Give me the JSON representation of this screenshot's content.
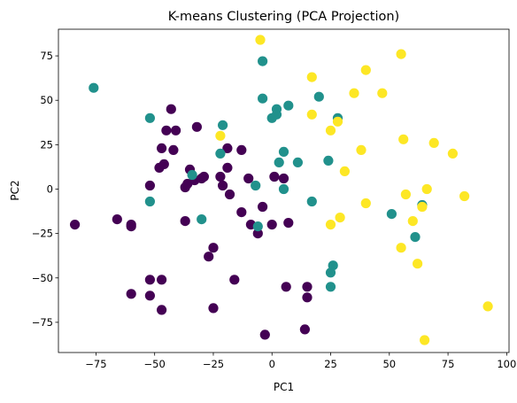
{
  "chart_data": {
    "type": "scatter",
    "title": "K-means Clustering (PCA Projection)",
    "xlabel": "PC1",
    "ylabel": "PC2",
    "xlim": [
      -91,
      101
    ],
    "ylim": [
      -92,
      90
    ],
    "xticks": [
      -75,
      -50,
      -25,
      0,
      25,
      50,
      75,
      100
    ],
    "yticks": [
      -75,
      -50,
      -25,
      0,
      25,
      50,
      75
    ],
    "grid": false,
    "series": [
      {
        "color": "#440154",
        "points": [
          [
            -84,
            -20
          ],
          [
            -66,
            -17
          ],
          [
            -60,
            -20
          ],
          [
            -60,
            -21
          ],
          [
            -60,
            -59
          ],
          [
            -52,
            2
          ],
          [
            -52,
            -51
          ],
          [
            -52,
            -60
          ],
          [
            -47,
            -51
          ],
          [
            -47,
            -68
          ],
          [
            -48,
            12
          ],
          [
            -47,
            23
          ],
          [
            -46,
            14
          ],
          [
            -45,
            33
          ],
          [
            -43,
            45
          ],
          [
            -42,
            22
          ],
          [
            -41,
            33
          ],
          [
            -37,
            -18
          ],
          [
            -37,
            1
          ],
          [
            -36,
            3
          ],
          [
            -35,
            11
          ],
          [
            -33,
            5
          ],
          [
            -32,
            35
          ],
          [
            -30,
            6
          ],
          [
            -29,
            7
          ],
          [
            -27,
            -38
          ],
          [
            -25,
            -33
          ],
          [
            -25,
            -67
          ],
          [
            -22,
            7
          ],
          [
            -21,
            2
          ],
          [
            -19,
            12
          ],
          [
            -19,
            23
          ],
          [
            -18,
            -3
          ],
          [
            -16,
            -51
          ],
          [
            -13,
            22
          ],
          [
            -13,
            -13
          ],
          [
            -10,
            6
          ],
          [
            -9,
            -20
          ],
          [
            -6,
            -25
          ],
          [
            -4,
            -10
          ],
          [
            -3,
            -82
          ],
          [
            0,
            -20
          ],
          [
            1,
            7
          ],
          [
            5,
            6
          ],
          [
            6,
            -55
          ],
          [
            7,
            -19
          ],
          [
            14,
            -79
          ],
          [
            15,
            -55
          ],
          [
            15,
            -61
          ]
        ]
      },
      {
        "color": "#21918c",
        "points": [
          [
            -76,
            57
          ],
          [
            -52,
            40
          ],
          [
            -52,
            -7
          ],
          [
            -34,
            8
          ],
          [
            -30,
            -17
          ],
          [
            -21,
            36
          ],
          [
            -22,
            20
          ],
          [
            -7,
            2
          ],
          [
            -6,
            -21
          ],
          [
            -4,
            72
          ],
          [
            -4,
            51
          ],
          [
            0,
            40
          ],
          [
            2,
            45
          ],
          [
            2,
            42
          ],
          [
            3,
            15
          ],
          [
            5,
            21
          ],
          [
            5,
            0
          ],
          [
            7,
            47
          ],
          [
            11,
            15
          ],
          [
            17,
            -7
          ],
          [
            20,
            52
          ],
          [
            24,
            16
          ],
          [
            25,
            -47
          ],
          [
            25,
            -55
          ],
          [
            26,
            -43
          ],
          [
            28,
            40
          ],
          [
            51,
            -14
          ],
          [
            61,
            -27
          ],
          [
            64,
            -9
          ]
        ]
      },
      {
        "color": "#fde725",
        "points": [
          [
            -5,
            84
          ],
          [
            -22,
            30
          ],
          [
            17,
            63
          ],
          [
            17,
            42
          ],
          [
            25,
            33
          ],
          [
            25,
            -20
          ],
          [
            28,
            38
          ],
          [
            29,
            -16
          ],
          [
            31,
            10
          ],
          [
            35,
            54
          ],
          [
            38,
            22
          ],
          [
            40,
            67
          ],
          [
            40,
            -8
          ],
          [
            47,
            54
          ],
          [
            55,
            76
          ],
          [
            55,
            -33
          ],
          [
            56,
            28
          ],
          [
            57,
            -3
          ],
          [
            60,
            -18
          ],
          [
            62,
            -42
          ],
          [
            64,
            -10
          ],
          [
            65,
            -85
          ],
          [
            66,
            0
          ],
          [
            69,
            26
          ],
          [
            77,
            20
          ],
          [
            82,
            -4
          ],
          [
            92,
            -66
          ]
        ]
      }
    ]
  }
}
